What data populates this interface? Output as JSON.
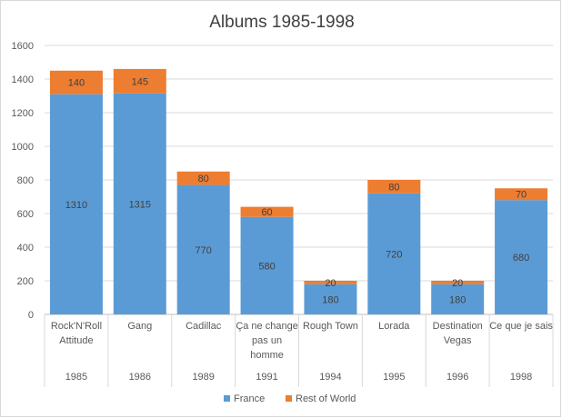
{
  "chart_data": {
    "type": "bar",
    "stacked": true,
    "title": "Albums 1985-1998",
    "xlabel": "",
    "ylabel": "",
    "ylim": [
      0,
      1600
    ],
    "yticks": [
      0,
      200,
      400,
      600,
      800,
      1000,
      1200,
      1400,
      1600
    ],
    "grid": true,
    "legend_position": "bottom",
    "categories": [
      {
        "label": [
          "Rock'N'Roll",
          "Attitude"
        ],
        "year": "1985"
      },
      {
        "label": [
          "Gang"
        ],
        "year": "1986"
      },
      {
        "label": [
          "Cadillac"
        ],
        "year": "1989"
      },
      {
        "label": [
          "Ça ne change",
          "pas un",
          "homme"
        ],
        "year": "1991"
      },
      {
        "label": [
          "Rough Town"
        ],
        "year": "1994"
      },
      {
        "label": [
          "Lorada"
        ],
        "year": "1995"
      },
      {
        "label": [
          "Destination",
          "Vegas"
        ],
        "year": "1996"
      },
      {
        "label": [
          "Ce que je sais"
        ],
        "year": "1998"
      }
    ],
    "series": [
      {
        "name": "France",
        "color": "#5b9bd5",
        "values": [
          1310,
          1315,
          770,
          580,
          180,
          720,
          180,
          680
        ]
      },
      {
        "name": "Rest of World",
        "color": "#ed7d31",
        "values": [
          140,
          145,
          80,
          60,
          20,
          80,
          20,
          70
        ]
      }
    ]
  }
}
